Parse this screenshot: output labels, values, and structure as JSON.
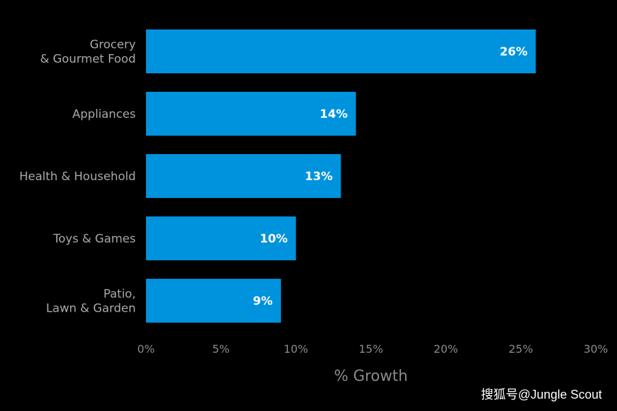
{
  "chart_data": {
    "type": "bar",
    "orientation": "horizontal",
    "categories": [
      [
        "Grocery",
        "& Gourmet Food"
      ],
      [
        "Appliances"
      ],
      [
        "Health & Household"
      ],
      [
        "Toys & Games"
      ],
      [
        "Patio,",
        "Lawn & Garden"
      ]
    ],
    "values": [
      26,
      14,
      13,
      10,
      9
    ],
    "value_labels": [
      "26%",
      "14%",
      "13%",
      "10%",
      "9%"
    ],
    "xlim": [
      0,
      30
    ],
    "xticks": [
      0,
      5,
      10,
      15,
      20,
      25,
      30
    ],
    "xtick_labels": [
      "0%",
      "5%",
      "10%",
      "15%",
      "20%",
      "25%",
      "30%"
    ],
    "xlabel": "% Growth",
    "bar_color": "#0093dd",
    "grid": false
  },
  "watermark": "搜狐号@Jungle Scout"
}
